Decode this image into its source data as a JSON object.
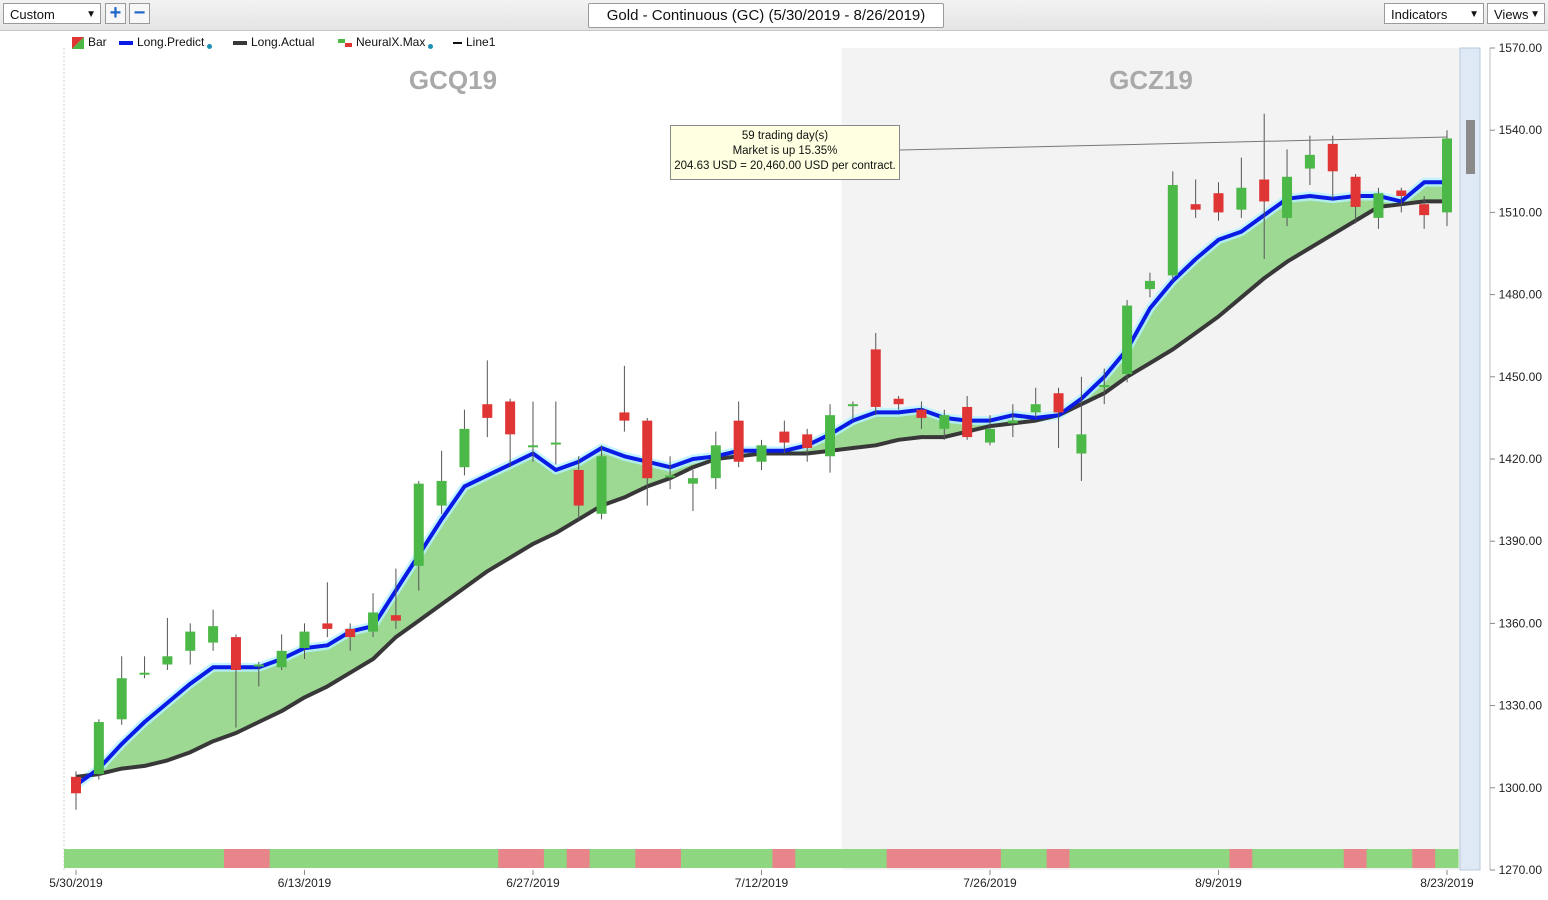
{
  "toolbar": {
    "preset": "Custom",
    "zoom_in": "+",
    "zoom_out": "−",
    "chart_title": "Gold - Continuous (GC) (5/30/2019 - 8/26/2019)",
    "indicators": "Indicators",
    "views": "Views"
  },
  "legend": {
    "bar": "Bar",
    "long_predict": "Long.Predict",
    "long_actual": "Long.Actual",
    "neuralx_max": "NeuralX.Max",
    "line1": "Line1"
  },
  "contracts": {
    "first": "GCQ19",
    "second": "GCZ19"
  },
  "tooltip": {
    "line1": "59 trading day(s)",
    "line2": "Market is up 15.35%",
    "line3": "204.63 USD = 20,460.00 USD per contract."
  },
  "colors": {
    "up": "#4cb847",
    "down": "#e03535",
    "predict": "#0a1be6",
    "actual": "#383838",
    "fill": "#9ed994",
    "strip_up": "#8fd680",
    "strip_down": "#e8858a",
    "shade": "#f3f3f3"
  },
  "chart_data": {
    "type": "candlestick",
    "ylim": [
      1270,
      1570
    ],
    "y_ticks": [
      1270,
      1300,
      1330,
      1360,
      1390,
      1420,
      1450,
      1480,
      1510,
      1540,
      1570
    ],
    "y_tick_labels": [
      "1270.00",
      "1300.00",
      "1330.00",
      "1360.00",
      "1390.00",
      "1420.00",
      "1450.00",
      "1480.00",
      "1510.00",
      "1540.00",
      "1570.00"
    ],
    "x_tick_labels": [
      "5/30/2019",
      "6/13/2019",
      "6/27/2019",
      "7/12/2019",
      "7/26/2019",
      "8/9/2019",
      "8/23/2019"
    ],
    "x_tick_index": [
      0,
      10,
      20,
      30,
      40,
      50,
      60
    ],
    "contract_switch_index": 34,
    "candles": [
      [
        1304,
        1298,
        1306,
        1292
      ],
      [
        1305,
        1324,
        1325,
        1303
      ],
      [
        1325,
        1340,
        1348,
        1323
      ],
      [
        1342,
        1342,
        1348,
        1340
      ],
      [
        1345,
        1348,
        1362,
        1343
      ],
      [
        1350,
        1357,
        1360,
        1345
      ],
      [
        1353,
        1359,
        1365,
        1350
      ],
      [
        1355,
        1343,
        1356,
        1322
      ],
      [
        1345,
        1345,
        1346,
        1337
      ],
      [
        1344,
        1350,
        1356,
        1343
      ],
      [
        1351,
        1357,
        1360,
        1347
      ],
      [
        1360,
        1358,
        1375,
        1355
      ],
      [
        1358,
        1355,
        1360,
        1350
      ],
      [
        1357,
        1364,
        1371,
        1355
      ],
      [
        1363,
        1361,
        1380,
        1358
      ],
      [
        1381,
        1411,
        1412,
        1372
      ],
      [
        1403,
        1412,
        1423,
        1400
      ],
      [
        1417,
        1431,
        1438,
        1414
      ],
      [
        1440,
        1435,
        1456,
        1428
      ],
      [
        1441,
        1429,
        1442,
        1417
      ],
      [
        1425,
        1425,
        1441,
        1419
      ],
      [
        1426,
        1426,
        1441,
        1418
      ],
      [
        1416,
        1403,
        1421,
        1398
      ],
      [
        1400,
        1421,
        1425,
        1398
      ],
      [
        1437,
        1434,
        1454,
        1430
      ],
      [
        1434,
        1413,
        1435,
        1403
      ],
      [
        1414,
        1414,
        1421,
        1409
      ],
      [
        1411,
        1413,
        1416,
        1401
      ],
      [
        1413,
        1425,
        1430,
        1409
      ],
      [
        1434,
        1419,
        1441,
        1417
      ],
      [
        1419,
        1425,
        1427,
        1416
      ],
      [
        1430,
        1426,
        1434,
        1422
      ],
      [
        1429,
        1424,
        1431,
        1419
      ],
      [
        1421,
        1436,
        1440,
        1415
      ],
      [
        1440,
        1440,
        1441,
        1434
      ],
      [
        1460,
        1439,
        1466,
        1436
      ],
      [
        1442,
        1440,
        1443,
        1438
      ],
      [
        1438,
        1435,
        1441,
        1431
      ],
      [
        1431,
        1436,
        1438,
        1427
      ],
      [
        1439,
        1428,
        1443,
        1427
      ],
      [
        1426,
        1431,
        1436,
        1425
      ],
      [
        1433,
        1434,
        1440,
        1428
      ],
      [
        1437,
        1440,
        1446,
        1435
      ],
      [
        1444,
        1437,
        1446,
        1424
      ],
      [
        1422,
        1429,
        1450,
        1412
      ],
      [
        1447,
        1447,
        1453,
        1440
      ],
      [
        1451,
        1476,
        1478,
        1448
      ],
      [
        1482,
        1485,
        1488,
        1479
      ],
      [
        1487,
        1520,
        1525,
        1485
      ],
      [
        1513,
        1511,
        1522,
        1508
      ],
      [
        1517,
        1510,
        1521,
        1507
      ],
      [
        1511,
        1519,
        1530,
        1508
      ],
      [
        1522,
        1514,
        1546,
        1493
      ],
      [
        1508,
        1523,
        1533,
        1505
      ],
      [
        1526,
        1531,
        1538,
        1520
      ],
      [
        1535,
        1525,
        1538,
        1515
      ],
      [
        1523,
        1512,
        1524,
        1506
      ],
      [
        1508,
        1517,
        1519,
        1504
      ],
      [
        1518,
        1516,
        1519,
        1510
      ],
      [
        1513,
        1509,
        1516,
        1504
      ],
      [
        1510,
        1537,
        1540,
        1505
      ]
    ],
    "long_predict": [
      1301,
      1307,
      1316,
      1324,
      1331,
      1338,
      1344,
      1344,
      1344,
      1347,
      1351,
      1352,
      1357,
      1359,
      1372,
      1385,
      1398,
      1410,
      1414,
      1418,
      1422,
      1416,
      1419,
      1424,
      1421,
      1419,
      1417,
      1420,
      1421,
      1423,
      1423,
      1423,
      1425,
      1429,
      1434,
      1437,
      1437,
      1438,
      1435,
      1434,
      1434,
      1436,
      1435,
      1436,
      1442,
      1450,
      1460,
      1475,
      1485,
      1493,
      1500,
      1503,
      1509,
      1515,
      1516,
      1515,
      1516,
      1516,
      1514,
      1521,
      1521
    ],
    "long_actual": [
      1304,
      1305,
      1307,
      1308,
      1310,
      1313,
      1317,
      1320,
      1324,
      1328,
      1333,
      1337,
      1342,
      1347,
      1355,
      1361,
      1367,
      1373,
      1379,
      1384,
      1389,
      1393,
      1398,
      1403,
      1406,
      1410,
      1413,
      1417,
      1420,
      1421,
      1422,
      1422,
      1422,
      1423,
      1424,
      1425,
      1427,
      1428,
      1428,
      1430,
      1432,
      1433,
      1434,
      1436,
      1440,
      1444,
      1450,
      1455,
      1460,
      1466,
      1472,
      1479,
      1486,
      1492,
      1497,
      1502,
      1507,
      1512,
      1513,
      1514,
      1514
    ],
    "strip": [
      "u",
      "u",
      "u",
      "u",
      "u",
      "u",
      "u",
      "d",
      "d",
      "u",
      "u",
      "u",
      "u",
      "u",
      "u",
      "u",
      "u",
      "u",
      "u",
      "d",
      "d",
      "u",
      "d",
      "u",
      "u",
      "d",
      "d",
      "u",
      "u",
      "u",
      "u",
      "d",
      "u",
      "u",
      "u",
      "u",
      "d",
      "d",
      "d",
      "d",
      "d",
      "u",
      "u",
      "d",
      "u",
      "u",
      "u",
      "u",
      "u",
      "u",
      "u",
      "d",
      "u",
      "u",
      "u",
      "u",
      "d",
      "u",
      "u",
      "d",
      "u"
    ]
  }
}
